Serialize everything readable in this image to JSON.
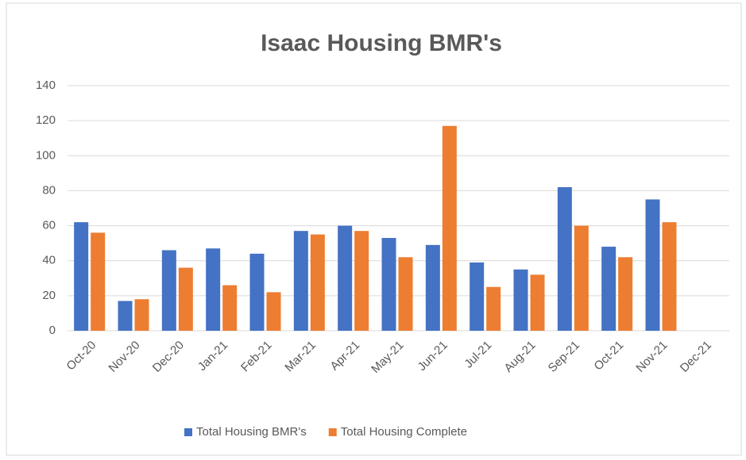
{
  "chart_data": {
    "type": "bar",
    "title": "Isaac Housing BMR's",
    "categories": [
      "Oct-20",
      "Nov-20",
      "Dec-20",
      "Jan-21",
      "Feb-21",
      "Mar-21",
      "Apr-21",
      "May-21",
      "Jun-21",
      "Jul-21",
      "Aug-21",
      "Sep-21",
      "Oct-21",
      "Nov-21",
      "Dec-21"
    ],
    "series": [
      {
        "name": "Total Housing BMR's",
        "color": "#4472c4",
        "values": [
          62,
          17,
          46,
          47,
          44,
          57,
          60,
          53,
          49,
          39,
          35,
          82,
          48,
          75,
          null
        ]
      },
      {
        "name": "Total Housing Complete",
        "color": "#ed7d31",
        "values": [
          56,
          18,
          36,
          26,
          22,
          55,
          57,
          42,
          117,
          25,
          32,
          60,
          42,
          62,
          null
        ]
      }
    ],
    "ylim": [
      0,
      140
    ],
    "yticks": [
      0,
      20,
      40,
      60,
      80,
      100,
      120,
      140
    ],
    "grid": true,
    "legend": "bottom"
  }
}
